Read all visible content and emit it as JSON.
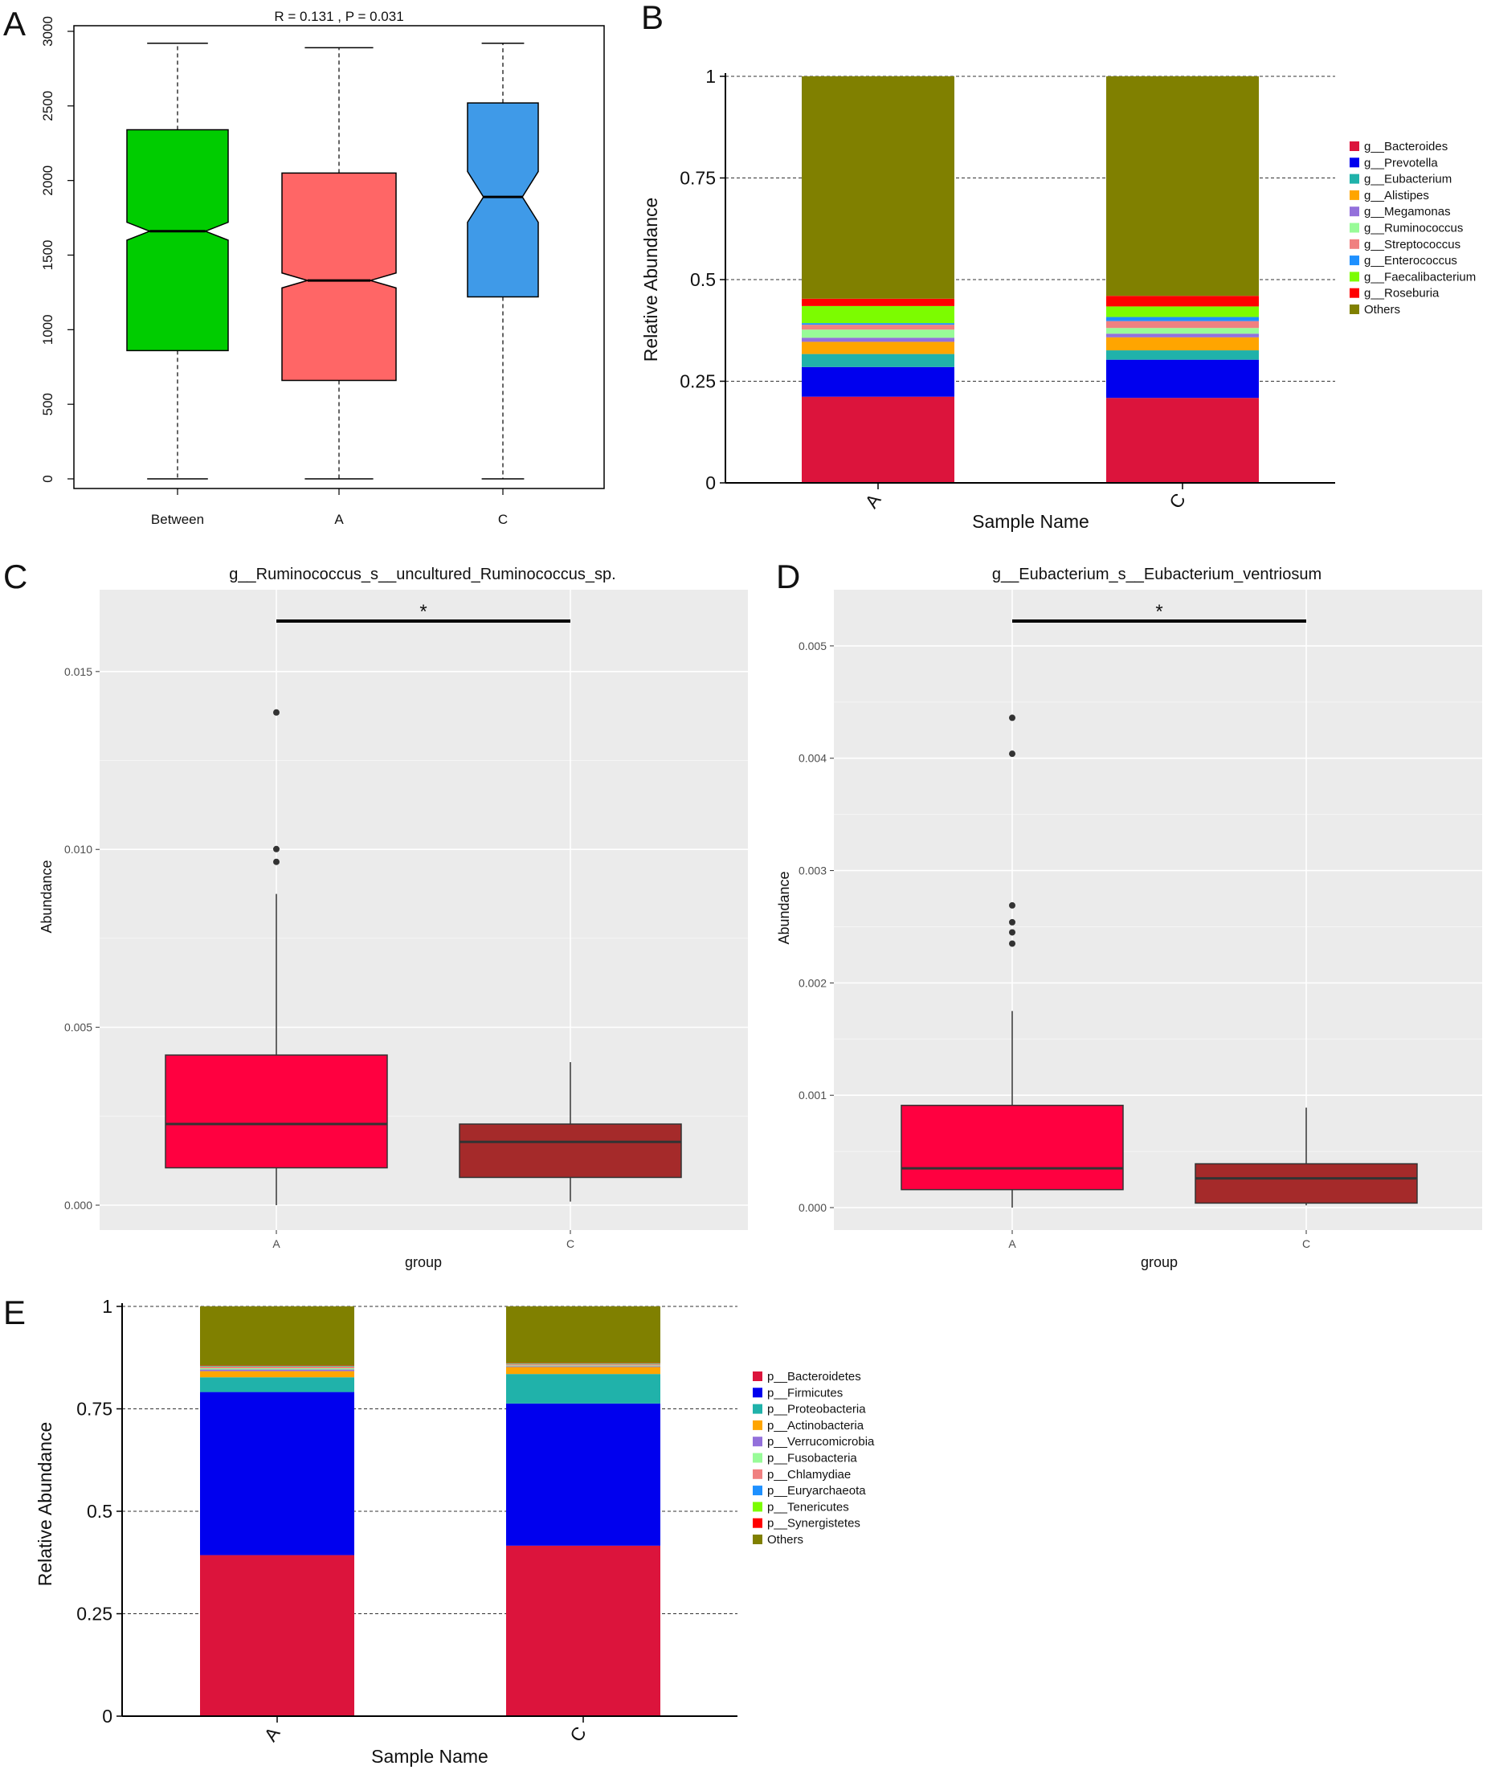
{
  "panels": [
    {
      "id": "A",
      "label": "A"
    },
    {
      "id": "B",
      "label": "B"
    },
    {
      "id": "C",
      "label": "C"
    },
    {
      "id": "D",
      "label": "D"
    },
    {
      "id": "E",
      "label": "E"
    }
  ],
  "chart_data": [
    {
      "panel": "A",
      "type": "box",
      "title": "R = 0.131 , P = 0.031",
      "notched": true,
      "categories": [
        "Between",
        "A",
        "C"
      ],
      "yticks": [
        "0",
        "500",
        "1000",
        "1500",
        "2000",
        "2500",
        "3000"
      ],
      "ylim": [
        0,
        3050
      ],
      "boxes": [
        {
          "name": "Between",
          "min": 0,
          "q1": 860,
          "median": 1660,
          "q3": 2340,
          "max": 2920,
          "notch_low": 1600,
          "notch_high": 1720,
          "color": "#00cc00"
        },
        {
          "name": "A",
          "min": 0,
          "q1": 660,
          "median": 1330,
          "q3": 2050,
          "max": 2890,
          "notch_low": 1280,
          "notch_high": 1380,
          "color": "#ff6666"
        },
        {
          "name": "C",
          "min": 0,
          "q1": 1220,
          "median": 1890,
          "q3": 2520,
          "max": 2920,
          "notch_low": 1720,
          "notch_high": 2060,
          "color": "#3f9ae8"
        }
      ]
    },
    {
      "panel": "B",
      "type": "bar",
      "stacked": true,
      "xlabel": "Sample Name",
      "ylabel": "Relative Abundance",
      "categories": [
        "A",
        "C"
      ],
      "yticks": [
        "0",
        "0.25",
        "0.5",
        "0.75",
        "1"
      ],
      "ylim": [
        0,
        1
      ],
      "series": [
        {
          "name": "g__Bacteroides",
          "color": "#dc143c",
          "values": [
            0.212,
            0.209
          ]
        },
        {
          "name": "g__Prevotella",
          "color": "#0000ee",
          "values": [
            0.073,
            0.094
          ]
        },
        {
          "name": "g__Eubacterium",
          "color": "#20b2aa",
          "values": [
            0.032,
            0.023
          ]
        },
        {
          "name": "g__Alistipes",
          "color": "#ffa500",
          "values": [
            0.03,
            0.032
          ]
        },
        {
          "name": "g__Megamonas",
          "color": "#9370db",
          "values": [
            0.01,
            0.009
          ]
        },
        {
          "name": "g__Ruminococcus",
          "color": "#98fb98",
          "values": [
            0.02,
            0.014
          ]
        },
        {
          "name": "g__Streptococcus",
          "color": "#f08080",
          "values": [
            0.012,
            0.017
          ]
        },
        {
          "name": "g__Enterococcus",
          "color": "#1e90ff",
          "values": [
            0.004,
            0.01
          ]
        },
        {
          "name": "g__Faecalibacterium",
          "color": "#7cfc00",
          "values": [
            0.042,
            0.026
          ]
        },
        {
          "name": "g__Roseburia",
          "color": "#ff0000",
          "values": [
            0.018,
            0.026
          ]
        },
        {
          "name": "Others",
          "color": "#808000",
          "values": [
            0.547,
            0.54
          ]
        }
      ]
    },
    {
      "panel": "C",
      "type": "box",
      "title": "g__Ruminococcus_s__uncultured_Ruminococcus_sp.",
      "xlabel": "group",
      "ylabel": "Abundance",
      "categories": [
        "A",
        "C"
      ],
      "yticks": [
        "0.000",
        "0.005",
        "0.010",
        "0.015"
      ],
      "ylim": [
        -0.0007,
        0.0173
      ],
      "significance": "*",
      "boxes": [
        {
          "name": "A",
          "min": 0.0,
          "q1": 0.00105,
          "median": 0.00228,
          "q3": 0.00422,
          "max": 0.00875,
          "outliers": [
            0.00965,
            0.01001,
            0.01385
          ],
          "color": "#ff0040"
        },
        {
          "name": "C",
          "min": 0.0001,
          "q1": 0.00078,
          "median": 0.00178,
          "q3": 0.00228,
          "max": 0.00402,
          "outliers": [],
          "color": "#a52a2a"
        }
      ]
    },
    {
      "panel": "D",
      "type": "box",
      "title": "g__Eubacterium_s__Eubacterium_ventriosum",
      "xlabel": "group",
      "ylabel": "Abundance",
      "categories": [
        "A",
        "C"
      ],
      "yticks": [
        "0.000",
        "0.001",
        "0.002",
        "0.003",
        "0.004",
        "0.005"
      ],
      "ylim": [
        -0.0002,
        0.0055
      ],
      "significance": "*",
      "boxes": [
        {
          "name": "A",
          "min": 0.0,
          "q1": 0.00016,
          "median": 0.00035,
          "q3": 0.00091,
          "max": 0.00175,
          "outliers": [
            0.00235,
            0.00245,
            0.00254,
            0.00269,
            0.00404,
            0.00436
          ],
          "color": "#ff0040"
        },
        {
          "name": "C",
          "min": 2e-05,
          "q1": 4e-05,
          "median": 0.00026,
          "q3": 0.00039,
          "max": 0.00089,
          "outliers": [],
          "color": "#a52a2a"
        }
      ]
    },
    {
      "panel": "E",
      "type": "bar",
      "stacked": true,
      "xlabel": "Sample Name",
      "ylabel": "Relative Abundance",
      "categories": [
        "A",
        "C"
      ],
      "yticks": [
        "0",
        "0.25",
        "0.5",
        "0.75",
        "1"
      ],
      "ylim": [
        0,
        1
      ],
      "series": [
        {
          "name": "p__Bacteroidetes",
          "color": "#dc143c",
          "values": [
            0.393,
            0.416
          ]
        },
        {
          "name": "p__Firmicutes",
          "color": "#0000ee",
          "values": [
            0.398,
            0.347
          ]
        },
        {
          "name": "p__Proteobacteria",
          "color": "#20b2aa",
          "values": [
            0.036,
            0.072
          ]
        },
        {
          "name": "p__Actinobacteria",
          "color": "#ffa500",
          "values": [
            0.015,
            0.017
          ]
        },
        {
          "name": "p__Verrucomicrobia",
          "color": "#9370db",
          "values": [
            0.004,
            0.002
          ]
        },
        {
          "name": "p__Fusobacteria",
          "color": "#98fb98",
          "values": [
            0.003,
            0.002
          ]
        },
        {
          "name": "p__Chlamydiae",
          "color": "#f08080",
          "values": [
            0.004,
            0.003
          ]
        },
        {
          "name": "p__Euryarchaeota",
          "color": "#1e90ff",
          "values": [
            0.001,
            0.001
          ]
        },
        {
          "name": "p__Tenericutes",
          "color": "#7cfc00",
          "values": [
            0.001,
            0.001
          ]
        },
        {
          "name": "p__Synergistetes",
          "color": "#ff0000",
          "values": [
            0.001,
            0.001
          ]
        },
        {
          "name": "Others",
          "color": "#808000",
          "values": [
            0.144,
            0.138
          ]
        }
      ]
    }
  ]
}
